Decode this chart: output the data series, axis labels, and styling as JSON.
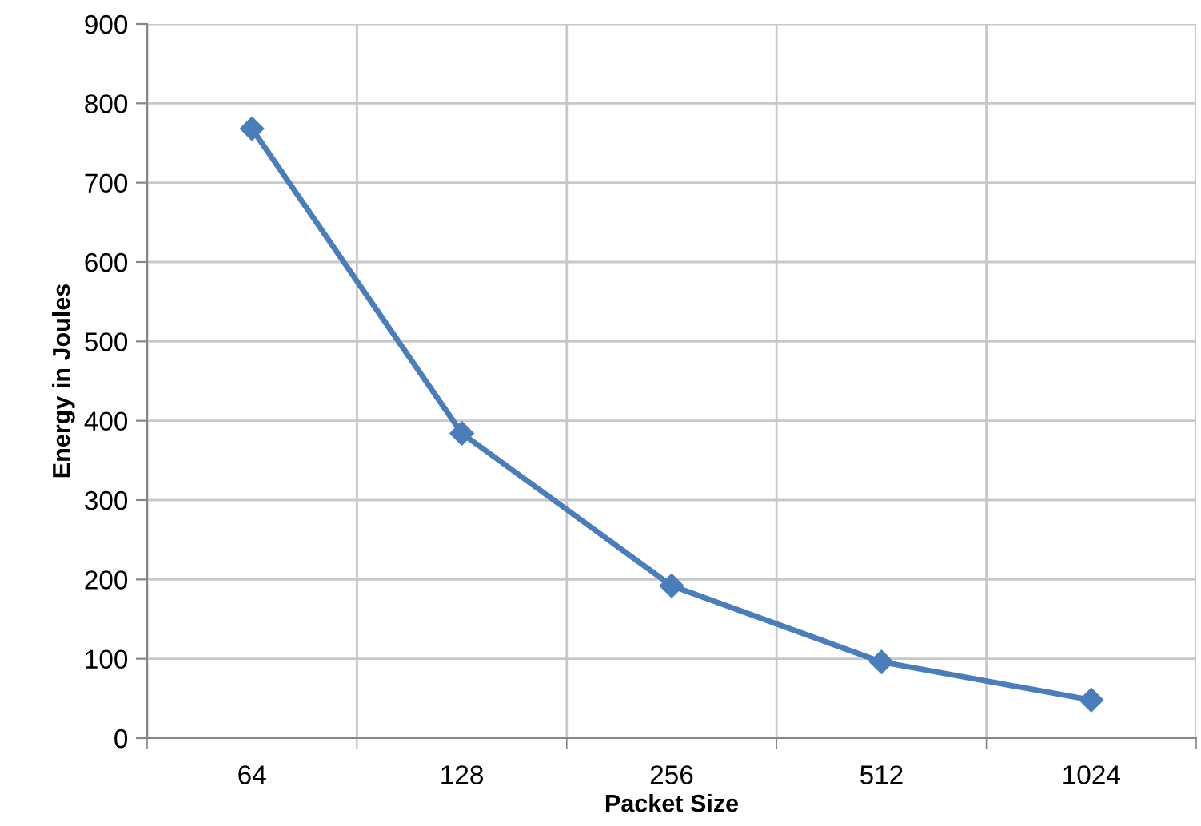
{
  "chart_data": {
    "type": "line",
    "xlabel": "Packet Size",
    "ylabel": "Energy in Joules",
    "categories": [
      "64",
      "128",
      "256",
      "512",
      "1024"
    ],
    "series": [
      {
        "color": "#4a7ebb",
        "values": [
          768,
          384,
          192,
          96,
          48
        ]
      }
    ],
    "ylim": [
      0,
      900
    ],
    "yticks": [
      0,
      100,
      200,
      300,
      400,
      500,
      600,
      700,
      800,
      900
    ],
    "grid": true,
    "marker": "diamond",
    "line_style": "solid"
  }
}
